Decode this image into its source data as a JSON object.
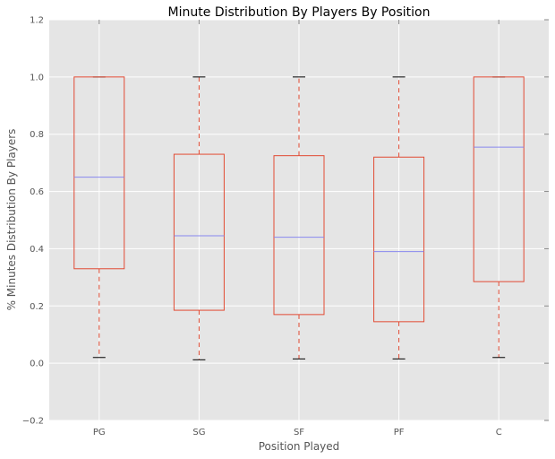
{
  "chart_data": {
    "type": "box",
    "title": "Minute Distribution By Players By Position",
    "xlabel": "Position Played",
    "ylabel": "% Minutes Distribution By Players",
    "ylim": [
      -0.2,
      1.2
    ],
    "yticks": [
      -0.2,
      0.0,
      0.2,
      0.4,
      0.6,
      0.8,
      1.0,
      1.2
    ],
    "ytick_labels": [
      "−0.2",
      "0.0",
      "0.2",
      "0.4",
      "0.6",
      "0.8",
      "1.0",
      "1.2"
    ],
    "grid": true,
    "categories": [
      "PG",
      "SG",
      "SF",
      "PF",
      "C"
    ],
    "boxes": [
      {
        "category": "PG",
        "whisker_low": 0.02,
        "q1": 0.33,
        "median": 0.65,
        "q3": 1.0,
        "whisker_high": 1.0
      },
      {
        "category": "SG",
        "whisker_low": 0.012,
        "q1": 0.185,
        "median": 0.445,
        "q3": 0.73,
        "whisker_high": 1.0
      },
      {
        "category": "SF",
        "whisker_low": 0.015,
        "q1": 0.17,
        "median": 0.44,
        "q3": 0.725,
        "whisker_high": 1.0
      },
      {
        "category": "PF",
        "whisker_low": 0.015,
        "q1": 0.145,
        "median": 0.39,
        "q3": 0.72,
        "whisker_high": 1.0
      },
      {
        "category": "C",
        "whisker_low": 0.02,
        "q1": 0.285,
        "median": 0.755,
        "q3": 1.0,
        "whisker_high": 1.0
      }
    ],
    "colors": {
      "background": "#e5e5e5",
      "grid": "#ffffff",
      "box": "#e24a33",
      "whisker": "#e24a33",
      "cap": "#000000",
      "median": "#8888ee"
    }
  }
}
